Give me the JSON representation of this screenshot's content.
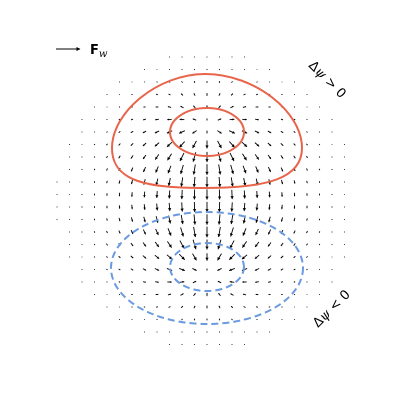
{
  "legend": {
    "symbol": "F",
    "subscript": "w"
  },
  "regions": {
    "positive": {
      "delta": "Δ",
      "psi": "ψ",
      "relation": " > 0",
      "color": "#e8644a"
    },
    "negative": {
      "delta": "Δ",
      "psi": "ψ",
      "relation": " < 0",
      "color": "#6a9ae0"
    }
  },
  "vector_field": {
    "color": "#000000",
    "description_free": true
  }
}
